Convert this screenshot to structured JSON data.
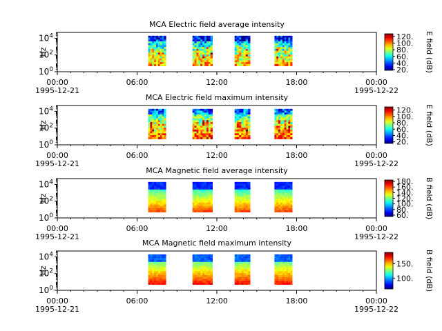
{
  "chart_data": [
    {
      "type": "heatmap",
      "title": "MCA  Electric field average intensity",
      "ylabel": "Hz",
      "colorbar_label": "E field (dB)",
      "colorbar_ticks": [
        "20.",
        "40.",
        "60.",
        "80.",
        "100.",
        "120."
      ],
      "colorbar_range": [
        18,
        128
      ],
      "y_scale": "log",
      "y_ticks": [
        {
          "base": "10",
          "exp": "0"
        },
        {
          "base": "10",
          "exp": "2"
        },
        {
          "base": "10",
          "exp": "4"
        }
      ],
      "x_ticks": [
        "00:00",
        "06:00",
        "12:00",
        "18:00",
        "00:00"
      ],
      "x_dates": [
        {
          "label": "1995-12-21",
          "at": "00:00"
        },
        {
          "label": "1995-12-22",
          "at": "00:00"
        }
      ],
      "data_blocks_utc": [
        [
          "06:50",
          "08:10"
        ],
        [
          "10:10",
          "11:40"
        ],
        [
          "13:20",
          "14:30"
        ],
        [
          "16:20",
          "17:40"
        ]
      ],
      "data_freq_range_hz": [
        5,
        20000
      ]
    },
    {
      "type": "heatmap",
      "title": "MCA  Electric field maximum intensity",
      "ylabel": "Hz",
      "colorbar_label": "E field (dB)",
      "colorbar_ticks": [
        "20.",
        "40.",
        "60.",
        "80.",
        "100.",
        "120."
      ],
      "colorbar_range": [
        15,
        130
      ],
      "y_scale": "log",
      "y_ticks": [
        {
          "base": "10",
          "exp": "0"
        },
        {
          "base": "10",
          "exp": "2"
        },
        {
          "base": "10",
          "exp": "4"
        }
      ],
      "x_ticks": [
        "00:00",
        "06:00",
        "12:00",
        "18:00",
        "00:00"
      ],
      "x_dates": [
        {
          "label": "1995-12-21",
          "at": "00:00"
        },
        {
          "label": "1995-12-22",
          "at": "00:00"
        }
      ],
      "data_blocks_utc": [
        [
          "06:50",
          "08:10"
        ],
        [
          "10:10",
          "11:40"
        ],
        [
          "13:20",
          "14:30"
        ],
        [
          "16:20",
          "17:40"
        ]
      ],
      "data_freq_range_hz": [
        5,
        20000
      ]
    },
    {
      "type": "heatmap",
      "title": "MCA  Magnetic field average intensity",
      "ylabel": "Hz",
      "colorbar_label": "B field (dB)",
      "colorbar_ticks": [
        "60.",
        "80.",
        "100.",
        "120.",
        "140.",
        "160.",
        "180."
      ],
      "colorbar_range": [
        55,
        185
      ],
      "y_scale": "log",
      "y_ticks": [
        {
          "base": "10",
          "exp": "0"
        },
        {
          "base": "10",
          "exp": "2"
        },
        {
          "base": "10",
          "exp": "4"
        }
      ],
      "x_ticks": [
        "00:00",
        "06:00",
        "12:00",
        "18:00",
        "00:00"
      ],
      "x_dates": [
        {
          "label": "1995-12-21",
          "at": "00:00"
        },
        {
          "label": "1995-12-22",
          "at": "00:00"
        }
      ],
      "data_blocks_utc": [
        [
          "06:50",
          "08:10"
        ],
        [
          "10:10",
          "11:40"
        ],
        [
          "13:20",
          "14:30"
        ],
        [
          "16:20",
          "17:40"
        ]
      ],
      "data_freq_range_hz": [
        5,
        20000
      ]
    },
    {
      "type": "heatmap",
      "title": "MCA  Magnetic field maximum intensity",
      "ylabel": "Hz",
      "colorbar_label": "B field (dB)",
      "colorbar_ticks": [
        "100.",
        "150."
      ],
      "colorbar_range": [
        62,
        190
      ],
      "y_scale": "log",
      "y_ticks": [
        {
          "base": "10",
          "exp": "0"
        },
        {
          "base": "10",
          "exp": "2"
        },
        {
          "base": "10",
          "exp": "4"
        }
      ],
      "x_ticks": [
        "00:00",
        "06:00",
        "12:00",
        "18:00",
        "00:00"
      ],
      "x_dates": [
        {
          "label": "1995-12-21",
          "at": "00:00"
        },
        {
          "label": "1995-12-22",
          "at": "00:00"
        }
      ],
      "data_blocks_utc": [
        [
          "06:50",
          "08:10"
        ],
        [
          "10:10",
          "11:40"
        ],
        [
          "13:20",
          "14:30"
        ],
        [
          "16:20",
          "17:40"
        ]
      ],
      "data_freq_range_hz": [
        5,
        20000
      ]
    }
  ]
}
